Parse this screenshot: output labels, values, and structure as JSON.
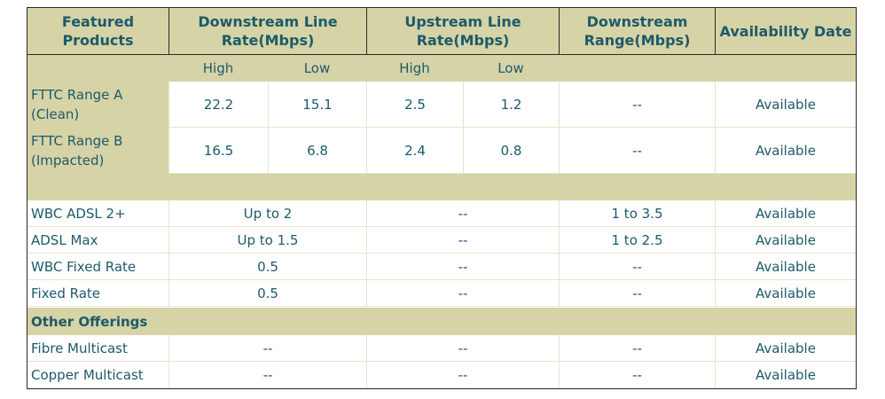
{
  "header": {
    "columns": [
      {
        "lines": [
          "Featured",
          "Products"
        ]
      },
      {
        "lines": [
          "Downstream Line",
          "Rate(Mbps)"
        ]
      },
      {
        "lines": [
          "Upstream Line",
          "Rate(Mbps)"
        ]
      },
      {
        "lines": [
          "Downstream",
          "Range(Mbps)"
        ]
      },
      {
        "lines": [
          "Availability Date"
        ]
      }
    ]
  },
  "subheader": [
    "High",
    "Low",
    "High",
    "Low"
  ],
  "fttc_rows": [
    {
      "label": [
        "FTTC Range A",
        "(Clean)"
      ],
      "cells": [
        "22.2",
        "15.1",
        "2.5",
        "1.2",
        "--",
        "Available"
      ]
    },
    {
      "label": [
        "FTTC Range B",
        "(Impacted)"
      ],
      "cells": [
        "16.5",
        "6.8",
        "2.4",
        "0.8",
        "--",
        "Available"
      ]
    }
  ],
  "adsl_rows": [
    {
      "label": "WBC ADSL 2+",
      "cells": [
        "Up to 2",
        "--",
        "1 to 3.5",
        "Available"
      ]
    },
    {
      "label": "ADSL Max",
      "cells": [
        "Up to 1.5",
        "--",
        "1 to 2.5",
        "Available"
      ]
    },
    {
      "label": "WBC Fixed Rate",
      "cells": [
        "0.5",
        "--",
        "--",
        "Available"
      ]
    },
    {
      "label": "Fixed Rate",
      "cells": [
        "0.5",
        "--",
        "--",
        "Available"
      ]
    }
  ],
  "section": "Other Offerings",
  "other_rows": [
    {
      "label": "Fibre Multicast",
      "cells": [
        "--",
        "--",
        "--",
        "Available"
      ]
    },
    {
      "label": "Copper Multicast",
      "cells": [
        "--",
        "--",
        "--",
        "Available"
      ]
    }
  ]
}
